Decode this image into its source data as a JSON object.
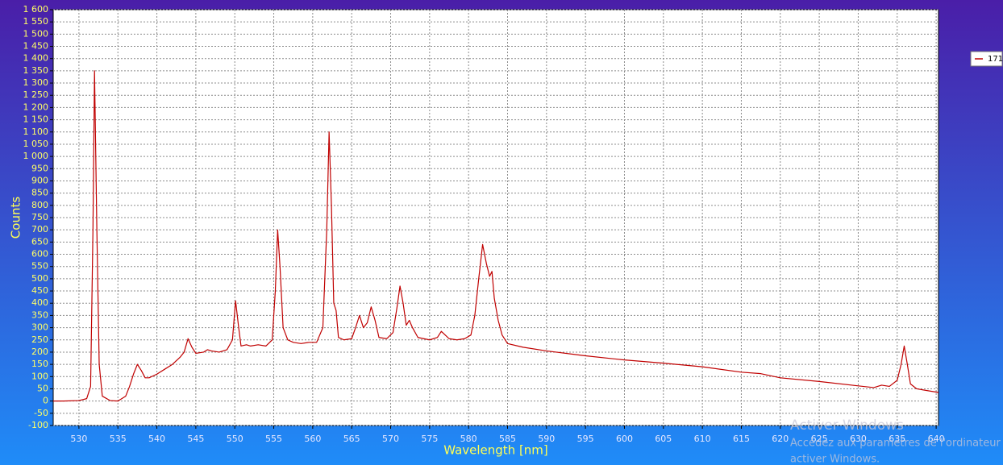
{
  "chart_data": {
    "type": "line",
    "x_label": "Wavelength [nm]",
    "y_label": "Counts",
    "xlim": [
      526.7,
      640.3
    ],
    "xticks": [
      530,
      535,
      540,
      545,
      550,
      555,
      560,
      565,
      570,
      575,
      580,
      585,
      590,
      595,
      600,
      605,
      610,
      615,
      620,
      625,
      630,
      635,
      640
    ],
    "ylim": [
      -100,
      1600
    ],
    "yticks": [
      -100,
      -50,
      0,
      50,
      100,
      150,
      200,
      250,
      300,
      350,
      400,
      450,
      500,
      550,
      600,
      650,
      700,
      750,
      800,
      850,
      900,
      950,
      {
        "value": 1000,
        "label": "1 000"
      },
      {
        "value": 1050,
        "label": "1 050"
      },
      {
        "value": 1100,
        "label": "1 100"
      },
      {
        "value": 1150,
        "label": "1 150"
      },
      {
        "value": 1200,
        "label": "1 200"
      },
      {
        "value": 1250,
        "label": "1 250"
      },
      {
        "value": 1300,
        "label": "1 300"
      },
      {
        "value": 1350,
        "label": "1 350"
      },
      {
        "value": 1400,
        "label": "1 400"
      },
      {
        "value": 1450,
        "label": "1 450"
      },
      {
        "value": 1500,
        "label": "1 500"
      },
      {
        "value": 1550,
        "label": "1 550"
      },
      {
        "value": 1600,
        "label": "1 600"
      }
    ],
    "grid": true,
    "legend_position": "right",
    "x": [
      526.7,
      528,
      530,
      531,
      531.5,
      531.8,
      532.0,
      532.3,
      532.6,
      533,
      534,
      535,
      536,
      536.5,
      537,
      537.5,
      538,
      538.5,
      539,
      540,
      541,
      542,
      543,
      543.5,
      544,
      544.5,
      545,
      546,
      546.5,
      547,
      548,
      549,
      549.7,
      550.1,
      550.5,
      550.8,
      551.5,
      552,
      553,
      554,
      554.8,
      555.2,
      555.5,
      555.8,
      556.2,
      556.8,
      557.5,
      558.5,
      559.5,
      560.5,
      561.3,
      561.8,
      562.1,
      562.4,
      562.7,
      563,
      563.3,
      564,
      565,
      565.5,
      566,
      566.5,
      567,
      567.5,
      568,
      568.5,
      569.5,
      570.3,
      570.8,
      571.2,
      571.6,
      572,
      572.4,
      572.8,
      573.5,
      575,
      576,
      576.5,
      577,
      577.5,
      578.5,
      579.5,
      580.3,
      580.8,
      581.3,
      581.8,
      582.3,
      582.7,
      583,
      583.3,
      583.8,
      584.3,
      585,
      587,
      590,
      595,
      600,
      605,
      610,
      615,
      617.5,
      620,
      625,
      630,
      632,
      633,
      634,
      635,
      635.5,
      635.9,
      636.3,
      636.7,
      637.5,
      640.3
    ],
    "series": [
      {
        "name": "171",
        "color": "#c00000",
        "values": [
          0,
          0,
          2,
          10,
          60,
          700,
          1350,
          700,
          150,
          20,
          2,
          0,
          20,
          60,
          110,
          150,
          125,
          95,
          95,
          110,
          130,
          150,
          180,
          200,
          255,
          220,
          195,
          200,
          210,
          205,
          200,
          210,
          250,
          410,
          300,
          225,
          230,
          225,
          230,
          225,
          250,
          450,
          700,
          550,
          300,
          250,
          240,
          235,
          240,
          240,
          300,
          700,
          1100,
          800,
          400,
          370,
          260,
          250,
          255,
          300,
          350,
          300,
          320,
          385,
          330,
          260,
          255,
          280,
          380,
          470,
          400,
          310,
          330,
          300,
          260,
          250,
          260,
          285,
          270,
          255,
          250,
          255,
          270,
          350,
          500,
          640,
          560,
          510,
          530,
          420,
          330,
          270,
          235,
          220,
          205,
          185,
          168,
          155,
          140,
          118,
          112,
          95,
          80,
          62,
          55,
          65,
          60,
          85,
          150,
          225,
          150,
          70,
          50,
          35
        ]
      }
    ]
  },
  "overlay": {
    "heading": "Activer Windows",
    "line1": "Accédez aux paramètres de l'ordinateur",
    "line2": "activer Windows."
  }
}
